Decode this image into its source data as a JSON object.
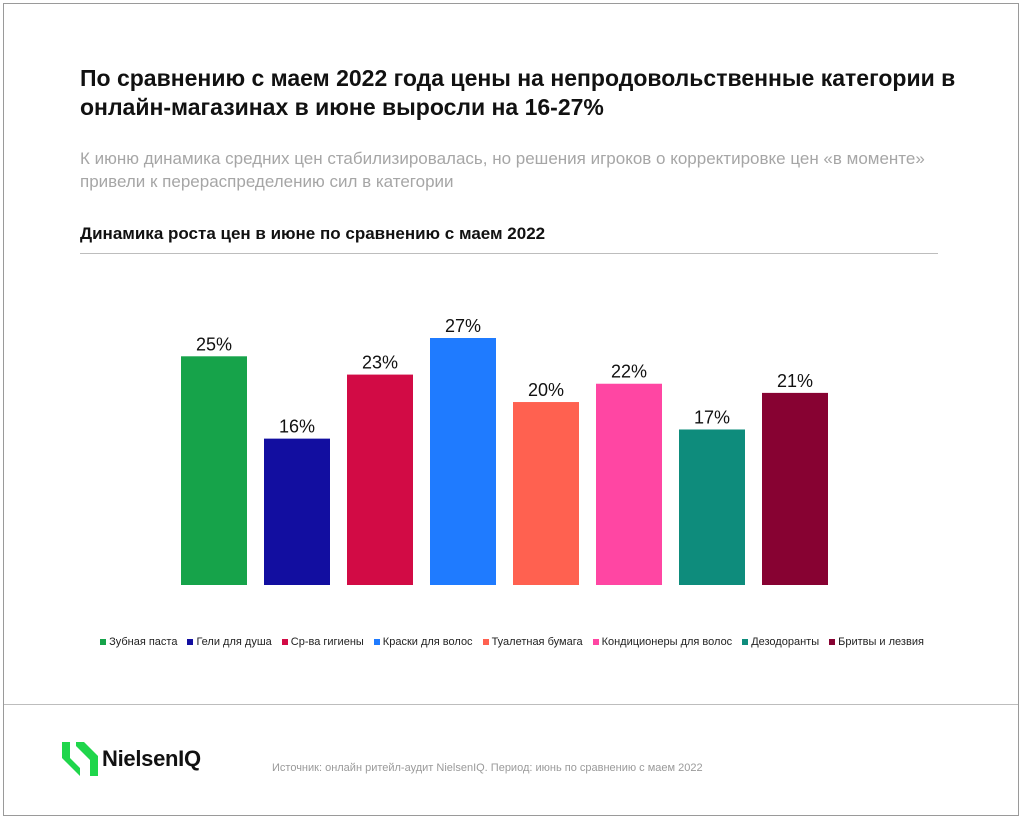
{
  "title": "По сравнению с маем 2022 года цены на непродовольственные категории в онлайн-магазинах в июне выросли на 16-27%",
  "subtitle": "К июню динамика средних цен стабилизировалась, но решения игроков о корректировке цен «в моменте» привели к перераспределению сил в категории",
  "chart_heading": "Динамика роста цен в июне по сравнению с маем 2022",
  "chart_data": {
    "type": "bar",
    "categories": [
      "Зубная паста",
      "Гели для душа",
      "Ср-ва гигиены",
      "Краски для волос",
      "Туалетная бумага",
      "Кондиционеры для волос",
      "Дезодоранты",
      "Бритвы и лезвия"
    ],
    "values": [
      25,
      16,
      23,
      27,
      20,
      22,
      17,
      21
    ],
    "value_labels": [
      "25%",
      "16%",
      "23%",
      "27%",
      "20%",
      "22%",
      "17%",
      "21%"
    ],
    "colors": [
      "#16a34a",
      "#120ea0",
      "#d20b45",
      "#1f7bff",
      "#ff6150",
      "#ff46a3",
      "#0e8c7c",
      "#870232"
    ],
    "unit": "%",
    "ylim": [
      0,
      27
    ],
    "grid": false,
    "legend_position": "bottom"
  },
  "logo_text": "NielsenIQ",
  "logo_color": "#1fd64b",
  "source": "Источник: онлайн ритейл-аудит NielsenIQ. Период: июнь по сравнению с маем 2022"
}
